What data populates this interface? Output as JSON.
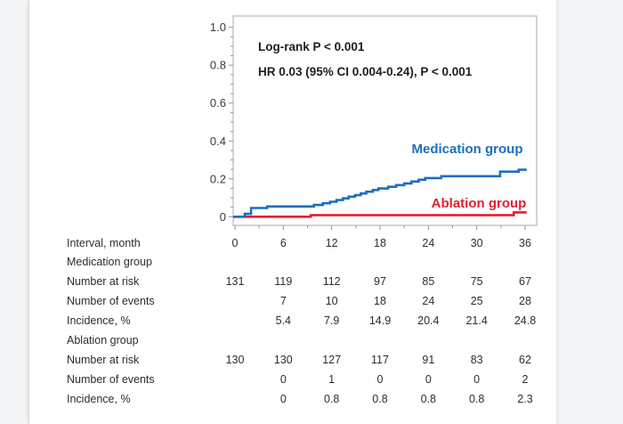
{
  "palette": {
    "medication_blue": "#1c6fbf",
    "ablation_red": "#e41e2d",
    "axis_border": "#b5b8bc",
    "tick_color": "#8e9398",
    "text_dark": "#1d1d1d",
    "table_text": "#2d2d2d",
    "page_background": "#f2f4f6",
    "surface": "#ffffff"
  },
  "chart_data": {
    "type": "line",
    "subtype": "kaplan-meier-cumulative-incidence-step",
    "title": "",
    "xlabel": "Interval, month",
    "ylabel": "",
    "xlim": [
      0,
      37.4
    ],
    "ylim": [
      0,
      1.05
    ],
    "x_ticks": [
      0,
      6,
      12,
      18,
      24,
      30,
      36
    ],
    "x_minor_step": 3,
    "y_ticks": [
      0,
      0.2,
      0.4,
      0.6,
      0.8,
      1.0
    ],
    "y_minor_step": 0.05,
    "grid": false,
    "legend_position": "inline-curve-labels",
    "annotations": [
      "Log-rank P < 0.001",
      "HR 0.03 (95% CI 0.004-0.24), P < 0.001"
    ],
    "series": [
      {
        "name": "Ablation group",
        "color": "#e41e2d",
        "step": true,
        "points": [
          [
            0,
            0
          ],
          [
            9.4,
            0.008
          ],
          [
            34.6,
            0.023
          ],
          [
            36.2,
            0.023
          ]
        ]
      },
      {
        "name": "Medication group",
        "color": "#1c6fbf",
        "step": true,
        "points": [
          [
            0,
            0
          ],
          [
            1.2,
            0.015
          ],
          [
            2.0,
            0.046
          ],
          [
            4.0,
            0.054
          ],
          [
            9.8,
            0.062
          ],
          [
            10.9,
            0.071
          ],
          [
            11.8,
            0.079
          ],
          [
            12.6,
            0.088
          ],
          [
            13.4,
            0.097
          ],
          [
            14.1,
            0.106
          ],
          [
            14.9,
            0.114
          ],
          [
            15.6,
            0.123
          ],
          [
            16.3,
            0.132
          ],
          [
            17.1,
            0.141
          ],
          [
            17.8,
            0.149
          ],
          [
            19.0,
            0.158
          ],
          [
            20.0,
            0.167
          ],
          [
            21.0,
            0.176
          ],
          [
            21.9,
            0.186
          ],
          [
            22.8,
            0.195
          ],
          [
            23.6,
            0.204
          ],
          [
            25.6,
            0.214
          ],
          [
            32.9,
            0.238
          ],
          [
            35.2,
            0.248
          ],
          [
            36.2,
            0.248
          ]
        ]
      }
    ]
  },
  "table": {
    "interval_label": "Interval, month",
    "columns": [
      "0",
      "6",
      "12",
      "18",
      "24",
      "30",
      "36"
    ],
    "groups": [
      {
        "name": "Medication group",
        "rows": [
          {
            "label": "Number at risk",
            "values": [
              "131",
              "119",
              "112",
              "97",
              "85",
              "75",
              "67"
            ]
          },
          {
            "label": "Number of events",
            "values": [
              "",
              "7",
              "10",
              "18",
              "24",
              "25",
              "28"
            ]
          },
          {
            "label": "Incidence, %",
            "values": [
              "",
              "5.4",
              "7.9",
              "14.9",
              "20.4",
              "21.4",
              "24.8"
            ]
          }
        ]
      },
      {
        "name": "Ablation group",
        "rows": [
          {
            "label": "Number at risk",
            "values": [
              "130",
              "130",
              "127",
              "117",
              "91",
              "83",
              "62"
            ]
          },
          {
            "label": "Number of events",
            "values": [
              "",
              "0",
              "1",
              "0",
              "0",
              "0",
              "2"
            ]
          },
          {
            "label": "Incidence, %",
            "values": [
              "",
              "0",
              "0.8",
              "0.8",
              "0.8",
              "0.8",
              "2.3"
            ]
          }
        ]
      }
    ]
  }
}
